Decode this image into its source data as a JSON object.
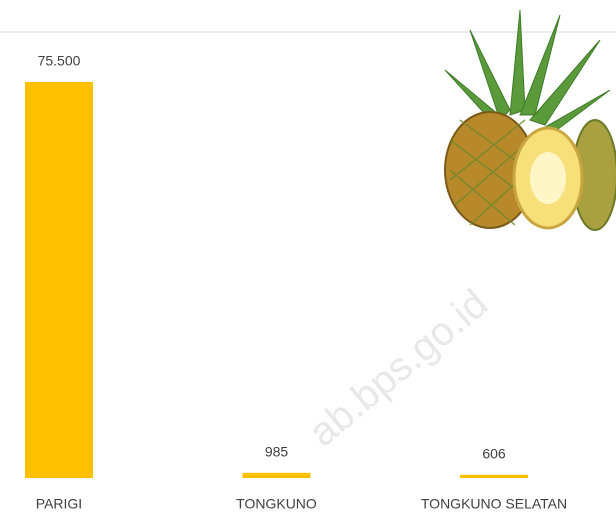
{
  "chart_data": {
    "type": "bar",
    "categories": [
      "PARIGI",
      "TONGKUNO",
      "TONGKUNO SELATAN"
    ],
    "values": [
      75500,
      985,
      606
    ],
    "value_labels": [
      "75.500",
      "985",
      "606"
    ],
    "color": "#ffc000",
    "watermark": "ab.bps.go.id"
  }
}
